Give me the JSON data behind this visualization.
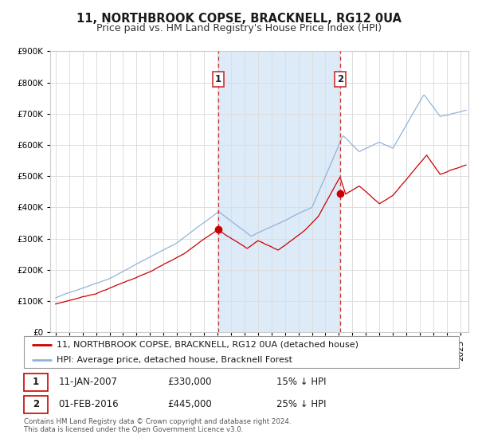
{
  "title": "11, NORTHBROOK COPSE, BRACKNELL, RG12 0UA",
  "subtitle": "Price paid vs. HM Land Registry's House Price Index (HPI)",
  "ylim": [
    0,
    900000
  ],
  "yticks": [
    0,
    100000,
    200000,
    300000,
    400000,
    500000,
    600000,
    700000,
    800000,
    900000
  ],
  "ytick_labels": [
    "£0",
    "£100K",
    "£200K",
    "£300K",
    "£400K",
    "£500K",
    "£600K",
    "£700K",
    "£800K",
    "£900K"
  ],
  "xlim_start": 1994.6,
  "xlim_end": 2025.6,
  "fig_bg_color": "#ffffff",
  "plot_bg_color": "#ffffff",
  "grid_color": "#dddddd",
  "sale1_year": 2007.04,
  "sale1_price": 330000,
  "sale1_label": "1",
  "sale1_date": "11-JAN-2007",
  "sale1_hpi_diff": "15% ↓ HPI",
  "sale2_year": 2016.08,
  "sale2_price": 445000,
  "sale2_label": "2",
  "sale2_date": "01-FEB-2016",
  "sale2_hpi_diff": "25% ↓ HPI",
  "hpi_line_color": "#92b4d8",
  "sale_line_color": "#cc0000",
  "sale_marker_color": "#cc0000",
  "vline_color": "#cc3333",
  "shade_color": "#ddeaf8",
  "legend_label1": "11, NORTHBROOK COPSE, BRACKNELL, RG12 0UA (detached house)",
  "legend_label2": "HPI: Average price, detached house, Bracknell Forest",
  "footer": "Contains HM Land Registry data © Crown copyright and database right 2024.\nThis data is licensed under the Open Government Licence v3.0.",
  "title_fontsize": 10.5,
  "subtitle_fontsize": 9,
  "tick_fontsize": 7.5,
  "legend_fontsize": 8,
  "info_fontsize": 8.5
}
